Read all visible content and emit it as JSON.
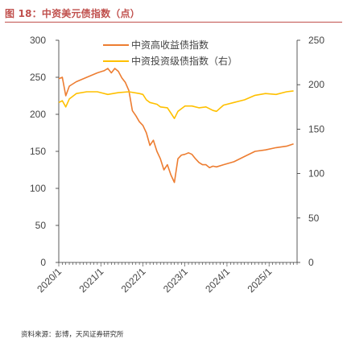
{
  "figure": {
    "title": "图 18：中资美元债指数（点）",
    "source": "资料来源：彭博，天风证券研究所"
  },
  "colors": {
    "high_yield": "#ED7D31",
    "investment_grade": "#FFC000",
    "title": "#C0504D"
  },
  "chart_data": {
    "type": "line",
    "title": "",
    "xlabel": "",
    "ylabel": "",
    "x_ticks": [
      "2020/1",
      "2021/1",
      "2022/1",
      "2023/1",
      "2024/1",
      "2025/1"
    ],
    "y_left": {
      "range": [
        0,
        300
      ],
      "ticks": [
        "0",
        "50",
        "100",
        "150",
        "200",
        "250",
        "300"
      ]
    },
    "y_right": {
      "range": [
        0,
        250
      ],
      "ticks": [
        "0",
        "50",
        "100",
        "150",
        "200",
        "250"
      ]
    },
    "grid": false,
    "legend_position": "top-center",
    "series": [
      {
        "name": "中资高收益债指数",
        "axis": "left",
        "color": "#ED7D31",
        "points": [
          [
            "2020-01",
            248
          ],
          [
            "2020-02",
            250
          ],
          [
            "2020-03",
            225
          ],
          [
            "2020-04",
            238
          ],
          [
            "2020-06",
            244
          ],
          [
            "2020-09",
            250
          ],
          [
            "2020-12",
            256
          ],
          [
            "2021-02",
            259
          ],
          [
            "2021-03",
            262
          ],
          [
            "2021-04",
            256
          ],
          [
            "2021-05",
            262
          ],
          [
            "2021-06",
            258
          ],
          [
            "2021-07",
            249
          ],
          [
            "2021-08",
            243
          ],
          [
            "2021-09",
            232
          ],
          [
            "2021-10",
            205
          ],
          [
            "2021-11",
            198
          ],
          [
            "2021-12",
            190
          ],
          [
            "2022-01",
            185
          ],
          [
            "2022-02",
            175
          ],
          [
            "2022-03",
            158
          ],
          [
            "2022-04",
            165
          ],
          [
            "2022-05",
            150
          ],
          [
            "2022-06",
            140
          ],
          [
            "2022-07",
            125
          ],
          [
            "2022-08",
            132
          ],
          [
            "2022-09",
            118
          ],
          [
            "2022-10",
            108
          ],
          [
            "2022-11",
            140
          ],
          [
            "2022-12",
            145
          ],
          [
            "2023-01",
            146
          ],
          [
            "2023-02",
            148
          ],
          [
            "2023-03",
            146
          ],
          [
            "2023-04",
            140
          ],
          [
            "2023-05",
            135
          ],
          [
            "2023-06",
            132
          ],
          [
            "2023-07",
            132
          ],
          [
            "2023-08",
            128
          ],
          [
            "2023-09",
            130
          ],
          [
            "2023-10",
            129
          ],
          [
            "2023-12",
            132
          ],
          [
            "2024-03",
            136
          ],
          [
            "2024-06",
            143
          ],
          [
            "2024-09",
            150
          ],
          [
            "2024-12",
            152
          ],
          [
            "2025-03",
            155
          ],
          [
            "2025-06",
            157
          ],
          [
            "2025-08",
            160
          ]
        ]
      },
      {
        "name": "中资投资级债指数（右）",
        "axis": "right",
        "color": "#FFC000",
        "points": [
          [
            "2020-01",
            180
          ],
          [
            "2020-02",
            182
          ],
          [
            "2020-03",
            175
          ],
          [
            "2020-04",
            184
          ],
          [
            "2020-06",
            190
          ],
          [
            "2020-09",
            192
          ],
          [
            "2020-12",
            192
          ],
          [
            "2021-03",
            189
          ],
          [
            "2021-06",
            191
          ],
          [
            "2021-09",
            192
          ],
          [
            "2021-12",
            190
          ],
          [
            "2022-01",
            189
          ],
          [
            "2022-02",
            183
          ],
          [
            "2022-03",
            180
          ],
          [
            "2022-05",
            178
          ],
          [
            "2022-06",
            175
          ],
          [
            "2022-08",
            174
          ],
          [
            "2022-09",
            168
          ],
          [
            "2022-10",
            162
          ],
          [
            "2022-11",
            170
          ],
          [
            "2022-12",
            173
          ],
          [
            "2023-01",
            176
          ],
          [
            "2023-03",
            176
          ],
          [
            "2023-05",
            174
          ],
          [
            "2023-07",
            175
          ],
          [
            "2023-09",
            171
          ],
          [
            "2023-10",
            170
          ],
          [
            "2023-12",
            177
          ],
          [
            "2024-03",
            180
          ],
          [
            "2024-06",
            183
          ],
          [
            "2024-09",
            188
          ],
          [
            "2024-12",
            190
          ],
          [
            "2025-03",
            189
          ],
          [
            "2025-06",
            192
          ],
          [
            "2025-08",
            193
          ]
        ]
      }
    ]
  }
}
